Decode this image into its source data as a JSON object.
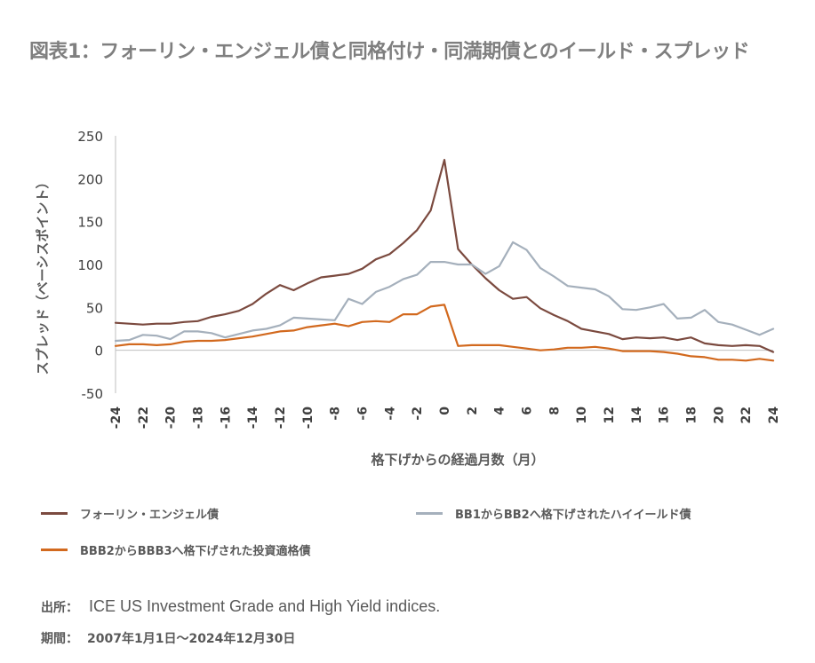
{
  "title": "図表1：フォーリン・エンジェル債と同格付け・同満期債とのイールド・スプレッド",
  "chart_data": {
    "type": "line",
    "ylabel": "スプレッド（ベーシスポイント）",
    "xlabel": "格下げからの経過月数（月）",
    "ylim": [
      -50,
      250
    ],
    "yticks": [
      -50,
      0,
      50,
      100,
      150,
      200,
      250
    ],
    "xlim": [
      -24,
      24
    ],
    "xticks": [
      -24,
      -22,
      -20,
      -18,
      -16,
      -14,
      -12,
      -10,
      -8,
      -6,
      -4,
      -2,
      0,
      2,
      4,
      6,
      8,
      10,
      12,
      14,
      16,
      18,
      20,
      22,
      24
    ],
    "grid": false,
    "x": [
      -24,
      -23,
      -22,
      -21,
      -20,
      -19,
      -18,
      -17,
      -16,
      -15,
      -14,
      -13,
      -12,
      -11,
      -10,
      -9,
      -8,
      -7,
      -6,
      -5,
      -4,
      -3,
      -2,
      -1,
      0,
      1,
      2,
      3,
      4,
      5,
      6,
      7,
      8,
      9,
      10,
      11,
      12,
      13,
      14,
      15,
      16,
      17,
      18,
      19,
      20,
      21,
      22,
      23,
      24
    ],
    "series": [
      {
        "name": "フォーリン・エンジェル債",
        "color": "#7b4a3f",
        "values": [
          32,
          31,
          30,
          31,
          31,
          33,
          34,
          39,
          42,
          46,
          54,
          66,
          76,
          70,
          78,
          85,
          87,
          89,
          95,
          106,
          112,
          125,
          140,
          163,
          222,
          118,
          100,
          84,
          70,
          60,
          62,
          49,
          41,
          34,
          25,
          22,
          19,
          13,
          15,
          14,
          15,
          12,
          15,
          8,
          6,
          5,
          6,
          5,
          -2
        ]
      },
      {
        "name": "BB1からBB2へ格下げされたハイイールド債",
        "color": "#a5b0bc",
        "values": [
          11,
          12,
          18,
          17,
          13,
          22,
          22,
          20,
          15,
          19,
          23,
          25,
          29,
          38,
          37,
          36,
          35,
          60,
          54,
          68,
          74,
          83,
          88,
          103,
          103,
          100,
          100,
          89,
          98,
          126,
          117,
          96,
          86,
          75,
          73,
          71,
          63,
          48,
          47,
          50,
          54,
          37,
          38,
          47,
          33,
          30,
          24,
          18,
          25
        ]
      },
      {
        "name": "BBB2からBBB3へ格下げされた投資適格債",
        "color": "#d2691e",
        "values": [
          5,
          7,
          7,
          6,
          7,
          10,
          11,
          11,
          12,
          14,
          16,
          19,
          22,
          23,
          27,
          29,
          31,
          28,
          33,
          34,
          33,
          42,
          42,
          51,
          53,
          5,
          6,
          6,
          6,
          4,
          2,
          0,
          1,
          3,
          3,
          4,
          2,
          -1,
          -1,
          -1,
          -2,
          -4,
          -7,
          -8,
          -11,
          -11,
          -12,
          -10,
          -12
        ]
      }
    ],
    "legend_position": "bottom"
  },
  "footer": {
    "source_label": "出所：",
    "source_value": "ICE US Investment Grade and High Yield indices.",
    "period_label": "期間：",
    "period_value": "2007年1月1日〜2024年12月30日"
  }
}
